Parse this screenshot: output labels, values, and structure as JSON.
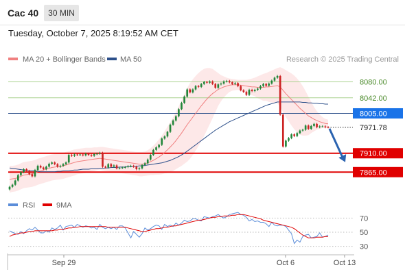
{
  "header": {
    "symbol": "Cac 40",
    "timeframe": "30 MIN",
    "datetime": "Tuesday, October 7, 2025 8:19:52 AM CET"
  },
  "legend": {
    "ma20_label": "MA 20 + Bollinger Bands",
    "ma50_label": "MA 50",
    "copyright": "Research © 2025 Trading Central"
  },
  "rsi_legend": {
    "rsi_label": "RSI",
    "ma_label": "9MA"
  },
  "colors": {
    "candle_up": "#22863a",
    "candle_down": "#cc2222",
    "ma20": "#f08080",
    "bollinger_fill": "#fde4e4",
    "ma50": "#2c4f8a",
    "resistance": "#a8d08d",
    "support": "#e00000",
    "pivot": "#2c4f8a",
    "current_price_label_bg": "#1a1a1a",
    "pivot_label_bg": "#1a73e8",
    "arrow": "#2a63b0",
    "rsi": "#5b8dd9",
    "rsi_ma": "#e00000"
  },
  "chart_data": [
    {
      "type": "candlestick",
      "title": "Cac 40",
      "ylim": [
        7810,
        8120
      ],
      "x_ticks": [
        "Sep 29",
        "Oct 6",
        "Oct 13"
      ],
      "levels": [
        {
          "value": 8080.0,
          "label": "8080.00",
          "kind": "resistance"
        },
        {
          "value": 8042.0,
          "label": "8042.00",
          "kind": "resistance"
        },
        {
          "value": 8005.0,
          "label": "8005.00",
          "kind": "pivot"
        },
        {
          "value": 7910.0,
          "label": "7910.00",
          "kind": "support"
        },
        {
          "value": 7865.0,
          "label": "7865.00",
          "kind": "support"
        }
      ],
      "current_price": {
        "value": 7971.78,
        "label": "7971.78"
      },
      "forecast_arrow": {
        "from": 7971.78,
        "to": 7910.0
      },
      "close": [
        7830,
        7835,
        7845,
        7858,
        7865,
        7872,
        7868,
        7860,
        7855,
        7870,
        7880,
        7876,
        7872,
        7878,
        7885,
        7888,
        7884,
        7878,
        7880,
        7884,
        7888,
        7906,
        7904,
        7907,
        7906,
        7907,
        7905,
        7909,
        7906,
        7904,
        7908,
        7909,
        7911,
        7878,
        7876,
        7884,
        7878,
        7881,
        7874,
        7875,
        7876,
        7877,
        7879,
        7880,
        7878,
        7872,
        7874,
        7882,
        7886,
        7895,
        7906,
        7918,
        7924,
        7930,
        7945,
        7950,
        7961,
        7978,
        7988,
        7998,
        8015,
        8030,
        8045,
        8062,
        8055,
        8062,
        8070,
        8068,
        8075,
        8080,
        8078,
        8081,
        8075,
        8066,
        8074,
        8076,
        8081,
        8082,
        8079,
        8075,
        8077,
        8070,
        8060,
        8056,
        8049,
        8061,
        8058,
        8061,
        8064,
        8070,
        8075,
        8071,
        8076,
        8083,
        8090,
        8094,
        8002,
        7926,
        7940,
        7946,
        7955,
        7951,
        7958,
        7964,
        7966,
        7976,
        7968,
        7975,
        7980,
        7972,
        7974,
        7974,
        7972,
        7971.78
      ],
      "ma20": [
        7848,
        7849,
        7850,
        7852,
        7855,
        7858,
        7859,
        7860,
        7861,
        7863,
        7866,
        7868,
        7870,
        7872,
        7874,
        7876,
        7877,
        7878,
        7879,
        7880,
        7882,
        7884,
        7886,
        7888,
        7890,
        7891,
        7892,
        7893,
        7894,
        7895,
        7896,
        7897,
        7898,
        7897,
        7896,
        7895,
        7894,
        7893,
        7892,
        7891,
        7890,
        7889,
        7888,
        7887,
        7886,
        7885,
        7884,
        7884,
        7885,
        7887,
        7890,
        7893,
        7897,
        7901,
        7906,
        7912,
        7918,
        7925,
        7932,
        7940,
        7949,
        7958,
        7968,
        7978,
        7987,
        7996,
        8005,
        8014,
        8023,
        8031,
        8039,
        8046,
        8052,
        8057,
        8062,
        8065,
        8068,
        8070,
        8072,
        8073,
        8073,
        8073,
        8072,
        8071,
        8070,
        8069,
        8068,
        8068,
        8067,
        8067,
        8067,
        8068,
        8068,
        8069,
        8070,
        8071,
        8068,
        8060,
        8052,
        8045,
        8038,
        8031,
        8024,
        8017,
        8011,
        8005,
        7999,
        7995,
        7991,
        7988,
        7985,
        7983,
        7981,
        7980
      ],
      "bb_upper": [
        7880,
        7880,
        7881,
        7883,
        7886,
        7889,
        7890,
        7891,
        7892,
        7894,
        7897,
        7899,
        7901,
        7903,
        7905,
        7907,
        7908,
        7909,
        7910,
        7911,
        7913,
        7915,
        7917,
        7919,
        7920,
        7921,
        7922,
        7923,
        7923,
        7923,
        7924,
        7924,
        7925,
        7925,
        7924,
        7923,
        7922,
        7921,
        7920,
        7919,
        7918,
        7917,
        7916,
        7915,
        7914,
        7913,
        7913,
        7913,
        7914,
        7917,
        7922,
        7928,
        7935,
        7943,
        7952,
        7962,
        7973,
        7984,
        7996,
        8008,
        8022,
        8036,
        8051,
        8066,
        8077,
        8086,
        8094,
        8101,
        8107,
        8111,
        8113,
        8113,
        8111,
        8106,
        8101,
        8096,
        8093,
        8090,
        8088,
        8087,
        8086,
        8085,
        8085,
        8085,
        8085,
        8086,
        8088,
        8090,
        8093,
        8096,
        8099,
        8101,
        8104,
        8107,
        8110,
        8113,
        8115,
        8112,
        8108,
        8104,
        8100,
        8095,
        8088,
        8080,
        8070,
        8058,
        8045,
        8032,
        8020,
        8010,
        8002,
        7996,
        7992,
        7990
      ],
      "bb_lower": [
        7816,
        7818,
        7819,
        7821,
        7824,
        7827,
        7828,
        7829,
        7830,
        7832,
        7835,
        7837,
        7839,
        7841,
        7843,
        7845,
        7846,
        7847,
        7848,
        7849,
        7851,
        7853,
        7855,
        7857,
        7860,
        7861,
        7862,
        7863,
        7865,
        7867,
        7868,
        7870,
        7871,
        7869,
        7868,
        7867,
        7866,
        7865,
        7864,
        7863,
        7862,
        7861,
        7860,
        7859,
        7858,
        7857,
        7855,
        7855,
        7856,
        7857,
        7858,
        7858,
        7859,
        7859,
        7860,
        7862,
        7863,
        7866,
        7868,
        7872,
        7876,
        7880,
        7885,
        7890,
        7897,
        7906,
        7916,
        7927,
        7939,
        7951,
        7965,
        7979,
        7993,
        8008,
        8023,
        8034,
        8043,
        8050,
        8056,
        8059,
        8060,
        8061,
        8059,
        8057,
        8055,
        8052,
        8048,
        8046,
        8041,
        8038,
        8035,
        8035,
        8032,
        8031,
        8030,
        8029,
        8021,
        8008,
        7996,
        7986,
        7976,
        7967,
        7960,
        7954,
        7952,
        7952,
        7953,
        7958,
        7962,
        7966,
        7968,
        7970,
        7970,
        7970
      ],
      "ma50": [
        7875,
        7874,
        7873,
        7872,
        7871,
        7870,
        7869,
        7868,
        7868,
        7868,
        7867,
        7866,
        7866,
        7866,
        7866,
        7866,
        7866,
        7867,
        7867,
        7868,
        7868,
        7868,
        7869,
        7870,
        7870,
        7871,
        7872,
        7872,
        7872,
        7873,
        7873,
        7873,
        7874,
        7874,
        7875,
        7875,
        7876,
        7876,
        7876,
        7877,
        7877,
        7877,
        7878,
        7878,
        7879,
        7879,
        7880,
        7880,
        7881,
        7882,
        7883,
        7884,
        7885,
        7886,
        7887,
        7889,
        7891,
        7893,
        7896,
        7899,
        7902,
        7906,
        7910,
        7915,
        7920,
        7925,
        7930,
        7935,
        7940,
        7945,
        7950,
        7955,
        7960,
        7965,
        7969,
        7973,
        7977,
        7981,
        7985,
        7988,
        7991,
        7994,
        7997,
        8000,
        8003,
        8006,
        8009,
        8012,
        8015,
        8018,
        8021,
        8024,
        8026,
        8028,
        8030,
        8032,
        8032,
        8032,
        8032,
        8032,
        8032,
        8032,
        8032,
        8032,
        8031,
        8031,
        8030,
        8030,
        8029,
        8029,
        8028,
        8028,
        8027,
        8027
      ]
    },
    {
      "type": "line",
      "title": "",
      "ylim": [
        20,
        80
      ],
      "y_ticks": [
        70,
        50,
        30
      ],
      "series": [
        {
          "name": "RSI",
          "values": [
            52,
            50,
            48,
            47,
            51,
            48,
            52,
            55,
            53,
            57,
            53,
            49,
            49,
            52,
            50,
            56,
            54,
            56,
            60,
            53,
            58,
            59,
            60,
            57,
            61,
            59,
            57,
            59,
            58,
            56,
            57,
            54,
            61,
            57,
            55,
            57,
            55,
            57,
            54,
            59,
            59,
            56,
            49,
            42,
            51,
            47,
            43,
            48,
            56,
            53,
            55,
            58,
            60,
            59,
            54,
            61,
            58,
            60,
            58,
            63,
            60,
            63,
            67,
            65,
            66,
            69,
            69,
            67,
            66,
            72,
            71,
            70,
            72,
            73,
            75,
            72,
            70,
            72,
            75,
            76,
            77,
            78,
            75,
            74,
            71,
            66,
            68,
            65,
            66,
            64,
            64,
            62,
            58,
            64,
            60,
            59,
            60,
            60,
            58,
            53,
            48,
            34,
            39,
            36,
            44,
            46,
            47,
            42,
            43,
            44,
            49,
            43,
            44,
            46
          ]
        },
        {
          "name": "9MA",
          "values": [
            44,
            46,
            47,
            48,
            49,
            49,
            50,
            51,
            51,
            52,
            52,
            52,
            52,
            52,
            52,
            52,
            53,
            53,
            54,
            54,
            55,
            56,
            56,
            57,
            57,
            58,
            58,
            58,
            58,
            58,
            58,
            58,
            58,
            58,
            58,
            57,
            57,
            57,
            57,
            57,
            57,
            57,
            56,
            55,
            54,
            53,
            52,
            51,
            51,
            52,
            53,
            54,
            55,
            55,
            56,
            57,
            57,
            58,
            59,
            59,
            60,
            61,
            62,
            63,
            64,
            65,
            66,
            67,
            67,
            68,
            69,
            70,
            71,
            71,
            72,
            72,
            73,
            73,
            73,
            74,
            74,
            75,
            75,
            75,
            74,
            73,
            72,
            71,
            70,
            69,
            67,
            66,
            65,
            64,
            63,
            62,
            61,
            60,
            59,
            58,
            57,
            55,
            52,
            49,
            46,
            44,
            42,
            42,
            42,
            43,
            43,
            43,
            44,
            44
          ]
        }
      ]
    }
  ]
}
